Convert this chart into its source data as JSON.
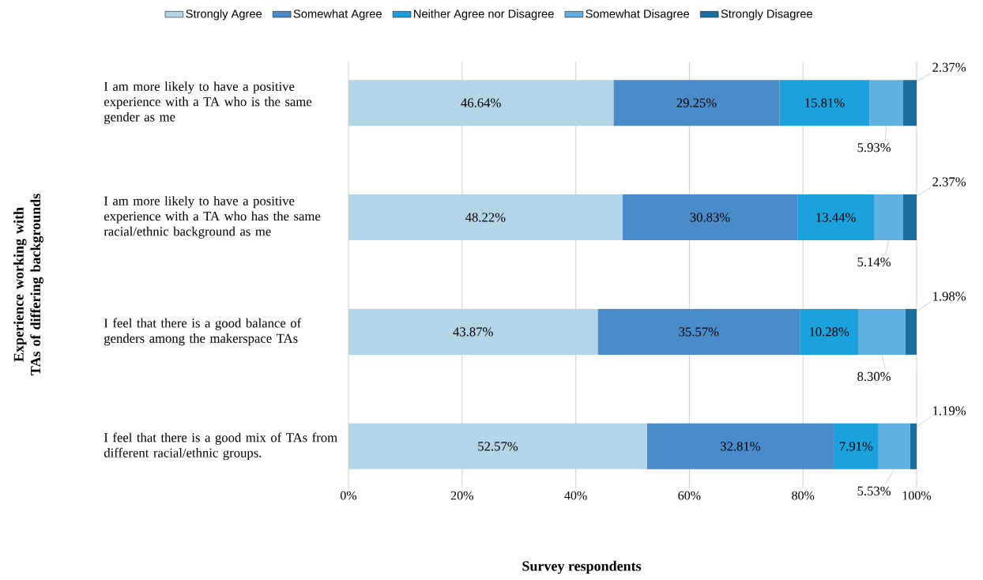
{
  "chart_data": {
    "type": "bar",
    "orientation": "horizontal",
    "stacked": true,
    "ylabel": "Experience working with TAs of differing backgrounds",
    "xlabel": "Survey respondents",
    "categories": [
      "I am more likely to have a positive experience with a TA who is the same gender as me",
      "I am more likely to have a positive experience with a TA who has the same racial/ethnic background as me",
      "I feel that there is a good balance of genders among the makerspace TAs",
      "I feel that there is a good mix of TAs from different racial/ethnic groups."
    ],
    "series": [
      {
        "name": "Strongly Agree",
        "color": "#b4d4e7",
        "values": [
          46.64,
          48.22,
          43.87,
          52.57
        ],
        "value_labels": [
          "46.64%",
          "48.22%",
          "43.87%",
          "52.57%"
        ]
      },
      {
        "name": "Somewhat Agree",
        "color": "#4a8cc9",
        "values": [
          29.25,
          30.83,
          35.57,
          32.81
        ],
        "value_labels": [
          "29.25%",
          "30.83%",
          "35.57%",
          "32.81%"
        ]
      },
      {
        "name": "Neither Agree nor Disagree",
        "color": "#1ba1dc",
        "values": [
          15.81,
          13.44,
          10.28,
          7.91
        ],
        "value_labels": [
          "15.81%",
          "13.44%",
          "10.28%",
          "7.91%"
        ]
      },
      {
        "name": "Somewhat Disagree",
        "color": "#5fb0e0",
        "values": [
          5.93,
          5.14,
          8.3,
          5.53
        ],
        "value_labels": [
          "5.93%",
          "5.14%",
          "8.30%",
          "5.53%"
        ]
      },
      {
        "name": "Strongly Disagree",
        "color": "#1a6e9e",
        "values": [
          2.37,
          2.37,
          1.98,
          1.19
        ],
        "value_labels": [
          "2.37%",
          "2.37%",
          "1.98%",
          "1.19%"
        ]
      }
    ],
    "xlim": [
      0,
      100
    ],
    "xticks": [
      {
        "value": 0,
        "label": "0%"
      },
      {
        "value": 20,
        "label": "20%"
      },
      {
        "value": 40,
        "label": "40%"
      },
      {
        "value": 60,
        "label": "60%"
      },
      {
        "value": 80,
        "label": "80%"
      },
      {
        "value": 100,
        "label": "100%"
      }
    ],
    "grid": "x",
    "legend": "top"
  }
}
